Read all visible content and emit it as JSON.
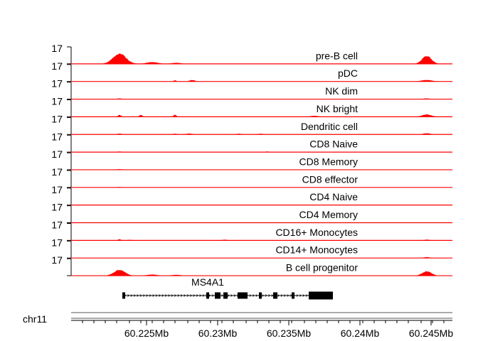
{
  "chart_data": {
    "type": "genome-coverage-tracks",
    "x_range_mb": [
      60.2197,
      60.2465
    ],
    "track_max": 17,
    "track_color": "#ff0000",
    "tracks": [
      {
        "name": "pre-B cell",
        "ymax": 17,
        "peaks": [
          [
            60.2231,
            0.72,
            0.14
          ],
          [
            60.2254,
            0.12,
            0.12
          ],
          [
            60.2271,
            0.07,
            0.1
          ],
          [
            60.2447,
            0.55,
            0.1
          ]
        ]
      },
      {
        "name": "pDC",
        "ymax": 17,
        "peaks": [
          [
            60.227,
            0.08,
            0.03
          ],
          [
            60.2282,
            0.1,
            0.06
          ],
          [
            60.2447,
            0.1,
            0.12
          ]
        ]
      },
      {
        "name": "NK dim",
        "ymax": 17,
        "peaks": [
          [
            60.2231,
            0.05,
            0.05
          ],
          [
            60.2447,
            0.05,
            0.08
          ]
        ]
      },
      {
        "name": "NK bright",
        "ymax": 17,
        "peaks": [
          [
            60.2231,
            0.14,
            0.03
          ],
          [
            60.2246,
            0.14,
            0.03
          ],
          [
            60.227,
            0.14,
            0.03
          ],
          [
            60.2368,
            0.07,
            0.08
          ],
          [
            60.2447,
            0.16,
            0.1
          ]
        ]
      },
      {
        "name": "Dendritic cell",
        "ymax": 17,
        "peaks": [
          [
            60.2231,
            0.06,
            0.05
          ],
          [
            60.227,
            0.05,
            0.05
          ],
          [
            60.228,
            0.06,
            0.08
          ],
          [
            60.2315,
            0.05,
            0.06
          ],
          [
            60.233,
            0.05,
            0.06
          ],
          [
            60.2447,
            0.08,
            0.08
          ]
        ]
      },
      {
        "name": "CD8 Naive",
        "ymax": 17,
        "peaks": [
          [
            60.2231,
            0.04,
            0.08
          ],
          [
            60.2335,
            0.04,
            0.06
          ]
        ]
      },
      {
        "name": "CD8 Memory",
        "ymax": 17,
        "peaks": [
          [
            60.2231,
            0.04,
            0.08
          ]
        ]
      },
      {
        "name": "CD8 effector",
        "ymax": 17,
        "peaks": [
          [
            60.2231,
            0.03,
            0.06
          ]
        ]
      },
      {
        "name": "CD4 Naive",
        "ymax": 17,
        "peaks": [
          [
            60.2231,
            0.03,
            0.06
          ],
          [
            60.2447,
            0.03,
            0.06
          ]
        ]
      },
      {
        "name": "CD4 Memory",
        "ymax": 17,
        "peaks": [
          [
            60.2231,
            0.03,
            0.06
          ]
        ]
      },
      {
        "name": "CD16+ Monocytes",
        "ymax": 17,
        "peaks": [
          [
            60.2231,
            0.08,
            0.03
          ],
          [
            60.2238,
            0.04,
            0.05
          ],
          [
            60.2305,
            0.05,
            0.05
          ],
          [
            60.2447,
            0.05,
            0.06
          ]
        ]
      },
      {
        "name": "CD14+ Monocytes",
        "ymax": 17,
        "peaks": [
          [
            60.2447,
            0.06,
            0.08
          ]
        ]
      },
      {
        "name": "B cell progenitor",
        "ymax": 17,
        "peaks": [
          [
            60.2231,
            0.4,
            0.12
          ],
          [
            60.2254,
            0.08,
            0.12
          ],
          [
            60.2271,
            0.06,
            0.1
          ],
          [
            60.2447,
            0.3,
            0.1
          ]
        ]
      }
    ],
    "gene": {
      "name": "MS4A1",
      "start_mb": 60.2233,
      "end_mb": 60.2381,
      "exons": [
        [
          60.2233,
          60.2235
        ],
        [
          60.2292,
          60.2294
        ],
        [
          60.2298,
          60.2302
        ],
        [
          60.2304,
          60.2307
        ],
        [
          60.2314,
          60.2321
        ],
        [
          60.2329,
          60.2331
        ],
        [
          60.2339,
          60.2342
        ],
        [
          60.2352,
          60.2354
        ],
        [
          60.2364,
          60.2381
        ]
      ]
    },
    "chromosome": "chr11",
    "x_ticks": [
      60.225,
      60.23,
      60.235,
      60.24,
      60.245
    ],
    "x_tick_labels": [
      "60.225Mb",
      "60.23Mb",
      "60.235Mb",
      "60.24Mb",
      "60.245Mb"
    ],
    "ideogram_ticks": [
      60.2205,
      60.2213,
      60.2221,
      60.2229,
      60.2238,
      60.2246,
      60.2254,
      60.2262,
      60.227,
      60.2279,
      60.2287,
      60.2295,
      60.2303,
      60.2311,
      60.232,
      60.2328,
      60.2336,
      60.2344,
      60.2352,
      60.2361,
      60.2369,
      60.2377,
      60.2385,
      60.2393,
      60.2402,
      60.241,
      60.2418,
      60.2426,
      60.2434,
      60.2443,
      60.2451,
      60.2459
    ]
  }
}
